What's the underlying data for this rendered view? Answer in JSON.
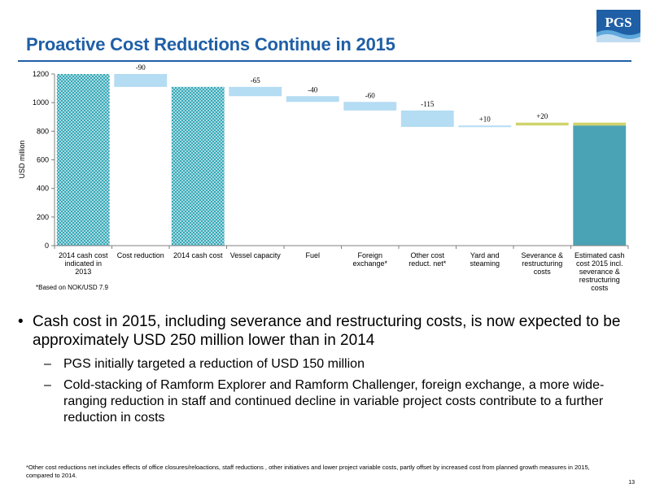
{
  "title": "Proactive Cost Reductions Continue in 2015",
  "logo": {
    "text": "PGS"
  },
  "chart_data": {
    "type": "bar",
    "subtype": "waterfall",
    "ylabel": "USD million",
    "ylim": [
      0,
      1200
    ],
    "yticks": [
      0,
      200,
      400,
      600,
      800,
      1000,
      1200
    ],
    "categories": [
      [
        "2014 cash cost",
        "indicated in",
        "2013"
      ],
      [
        "Cost reduction"
      ],
      [
        "2014 cash cost"
      ],
      [
        "Vessel capacity"
      ],
      [
        "Fuel"
      ],
      [
        "Foreign",
        "exchange*"
      ],
      [
        "Other cost",
        "reduct. net*"
      ],
      [
        "Yard and",
        "steaming"
      ],
      [
        "Severance &",
        "restructuring",
        "costs"
      ],
      [
        "Estimated cash",
        "cost 2015 incl.",
        "severance &",
        "restructuring",
        "costs"
      ]
    ],
    "bars": [
      {
        "kind": "total-hatched",
        "bottom": 0,
        "top": 1200,
        "label": ""
      },
      {
        "kind": "decrease",
        "bottom": 1110,
        "top": 1200,
        "label": "-90"
      },
      {
        "kind": "total-hatched",
        "bottom": 0,
        "top": 1110,
        "label": ""
      },
      {
        "kind": "decrease",
        "bottom": 1045,
        "top": 1110,
        "label": "-65"
      },
      {
        "kind": "decrease",
        "bottom": 1005,
        "top": 1045,
        "label": "-40"
      },
      {
        "kind": "decrease",
        "bottom": 945,
        "top": 1005,
        "label": "-60"
      },
      {
        "kind": "decrease",
        "bottom": 830,
        "top": 945,
        "label": "-115"
      },
      {
        "kind": "increase",
        "bottom": 830,
        "top": 840,
        "label": "+10"
      },
      {
        "kind": "increase-severance",
        "bottom": 840,
        "top": 860,
        "label": "+20"
      },
      {
        "kind": "total-final",
        "bottom": 0,
        "top": 860,
        "severance": 20,
        "label": ""
      }
    ],
    "colors": {
      "hatch": "#29a3b3",
      "decrease": "#b4dcf3",
      "increase": "#b4dcf3",
      "severance": "#cfd36b",
      "final": "#4aa3b4",
      "axis": "#808080"
    },
    "note": "*Based on NOK/USD 7.9"
  },
  "bullets": [
    {
      "text": "Cash cost in 2015, including severance and restructuring costs, is now expected to be approximately USD 250 million lower than in 2014",
      "subs": [
        "PGS initially targeted a reduction of USD 150 million",
        "Cold-stacking of Ramform Explorer and Ramform Challenger, foreign exchange, a more wide-ranging reduction in staff and continued decline in variable project costs contribute to a further reduction in costs"
      ]
    }
  ],
  "sub_dash": "–",
  "footnote": "*Other cost reductions net includes effects of office closures/reloactions, staff reductions , other initiatives and lower project variable costs, partly offset by increased cost from planned growth measures in 2015, compared to 2014.",
  "page_number": "13"
}
